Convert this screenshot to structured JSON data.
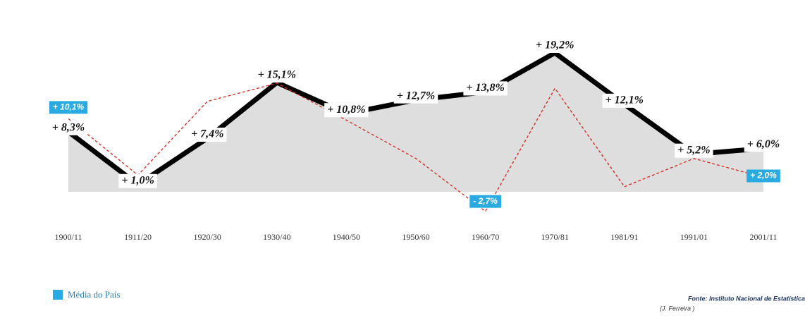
{
  "chart_data": {
    "type": "line",
    "categories": [
      "1900/11",
      "1911/20",
      "1920/30",
      "1930/40",
      "1940/50",
      "1950/60",
      "1960/70",
      "1970/81",
      "1981/91",
      "1991/01",
      "2001/11"
    ],
    "series": [
      {
        "color": "#000000",
        "fill": "#dedede",
        "values": [
          8.3,
          1.0,
          7.4,
          15.1,
          10.8,
          12.7,
          13.8,
          19.2,
          12.1,
          5.2,
          6.0
        ],
        "value_labels": [
          "+ 8,3%",
          "+ 1,0%",
          "+ 7,4%",
          "+ 15,1%",
          "+ 10,8%",
          "+ 12,7%",
          "+ 13,8%",
          "+ 19,2%",
          "+ 12,1%",
          "+ 5,2%",
          "+ 6,0%"
        ]
      },
      {
        "name": "Média do País",
        "color": "#d9241c",
        "label_color": "#29abe2",
        "values": [
          10.1,
          2.3,
          12.5,
          15.0,
          9.9,
          4.6,
          -2.7,
          14.3,
          0.7,
          4.6,
          2.0
        ],
        "value_labels": [
          "+ 10,1%",
          null,
          null,
          null,
          null,
          null,
          "- 2,7%",
          null,
          null,
          null,
          "+ 2,0%"
        ]
      }
    ],
    "source": "Fonte: Instituto Nacional de Estatística",
    "author": "(J. Ferreira )"
  }
}
